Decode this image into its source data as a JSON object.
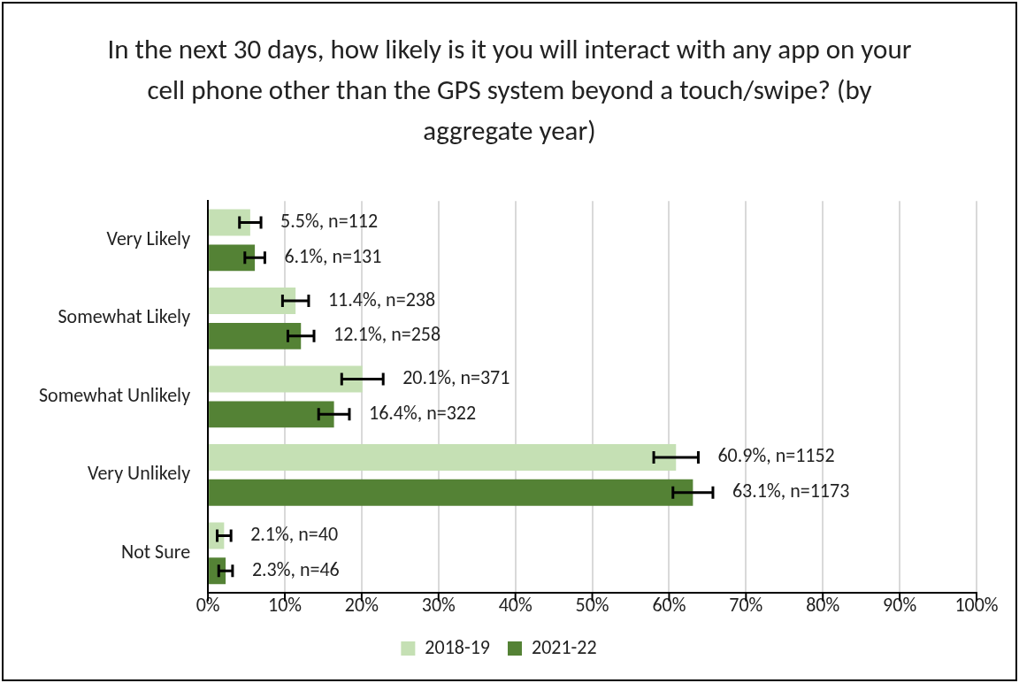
{
  "chart_data": {
    "type": "bar",
    "orientation": "horizontal",
    "title": "In the next 30 days, how likely is it you will interact with any app on your cell phone other than the GPS system beyond a touch/swipe? (by aggregate year)",
    "categories": [
      "Very Likely",
      "Somewhat Likely",
      "Somewhat Unlikely",
      "Very Unlikely",
      "Not Sure"
    ],
    "series": [
      {
        "name": "2018-19",
        "color": "#c5e0b4",
        "values": [
          5.5,
          11.4,
          20.1,
          60.9,
          2.1
        ],
        "errors": [
          1.4,
          1.7,
          2.7,
          2.9,
          0.9
        ],
        "value_labels": [
          "5.5%, n=112",
          "11.4%, n=238",
          "20.1%, n=371",
          "60.9%, n=1152",
          "2.1%, n=40"
        ]
      },
      {
        "name": "2021-22",
        "color": "#548235",
        "values": [
          6.1,
          12.1,
          16.4,
          63.1,
          2.3
        ],
        "errors": [
          1.3,
          1.7,
          2.0,
          2.6,
          0.9
        ],
        "value_labels": [
          "6.1%, n=131",
          "12.1%, n=258",
          "16.4%, n=322",
          "63.1%, n=1173",
          "2.3%, n=46"
        ]
      }
    ],
    "xlim": [
      0,
      100
    ],
    "xticks": [
      {
        "value": 0,
        "label": "0%"
      },
      {
        "value": 10,
        "label": "10%"
      },
      {
        "value": 20,
        "label": "20%"
      },
      {
        "value": 30,
        "label": "30%"
      },
      {
        "value": 40,
        "label": "40%"
      },
      {
        "value": 50,
        "label": "50%"
      },
      {
        "value": 60,
        "label": "60%"
      },
      {
        "value": 70,
        "label": "70%"
      },
      {
        "value": 80,
        "label": "80%"
      },
      {
        "value": 90,
        "label": "90%"
      },
      {
        "value": 100,
        "label": "100%"
      }
    ],
    "grid": "x",
    "legend": "bottom"
  }
}
